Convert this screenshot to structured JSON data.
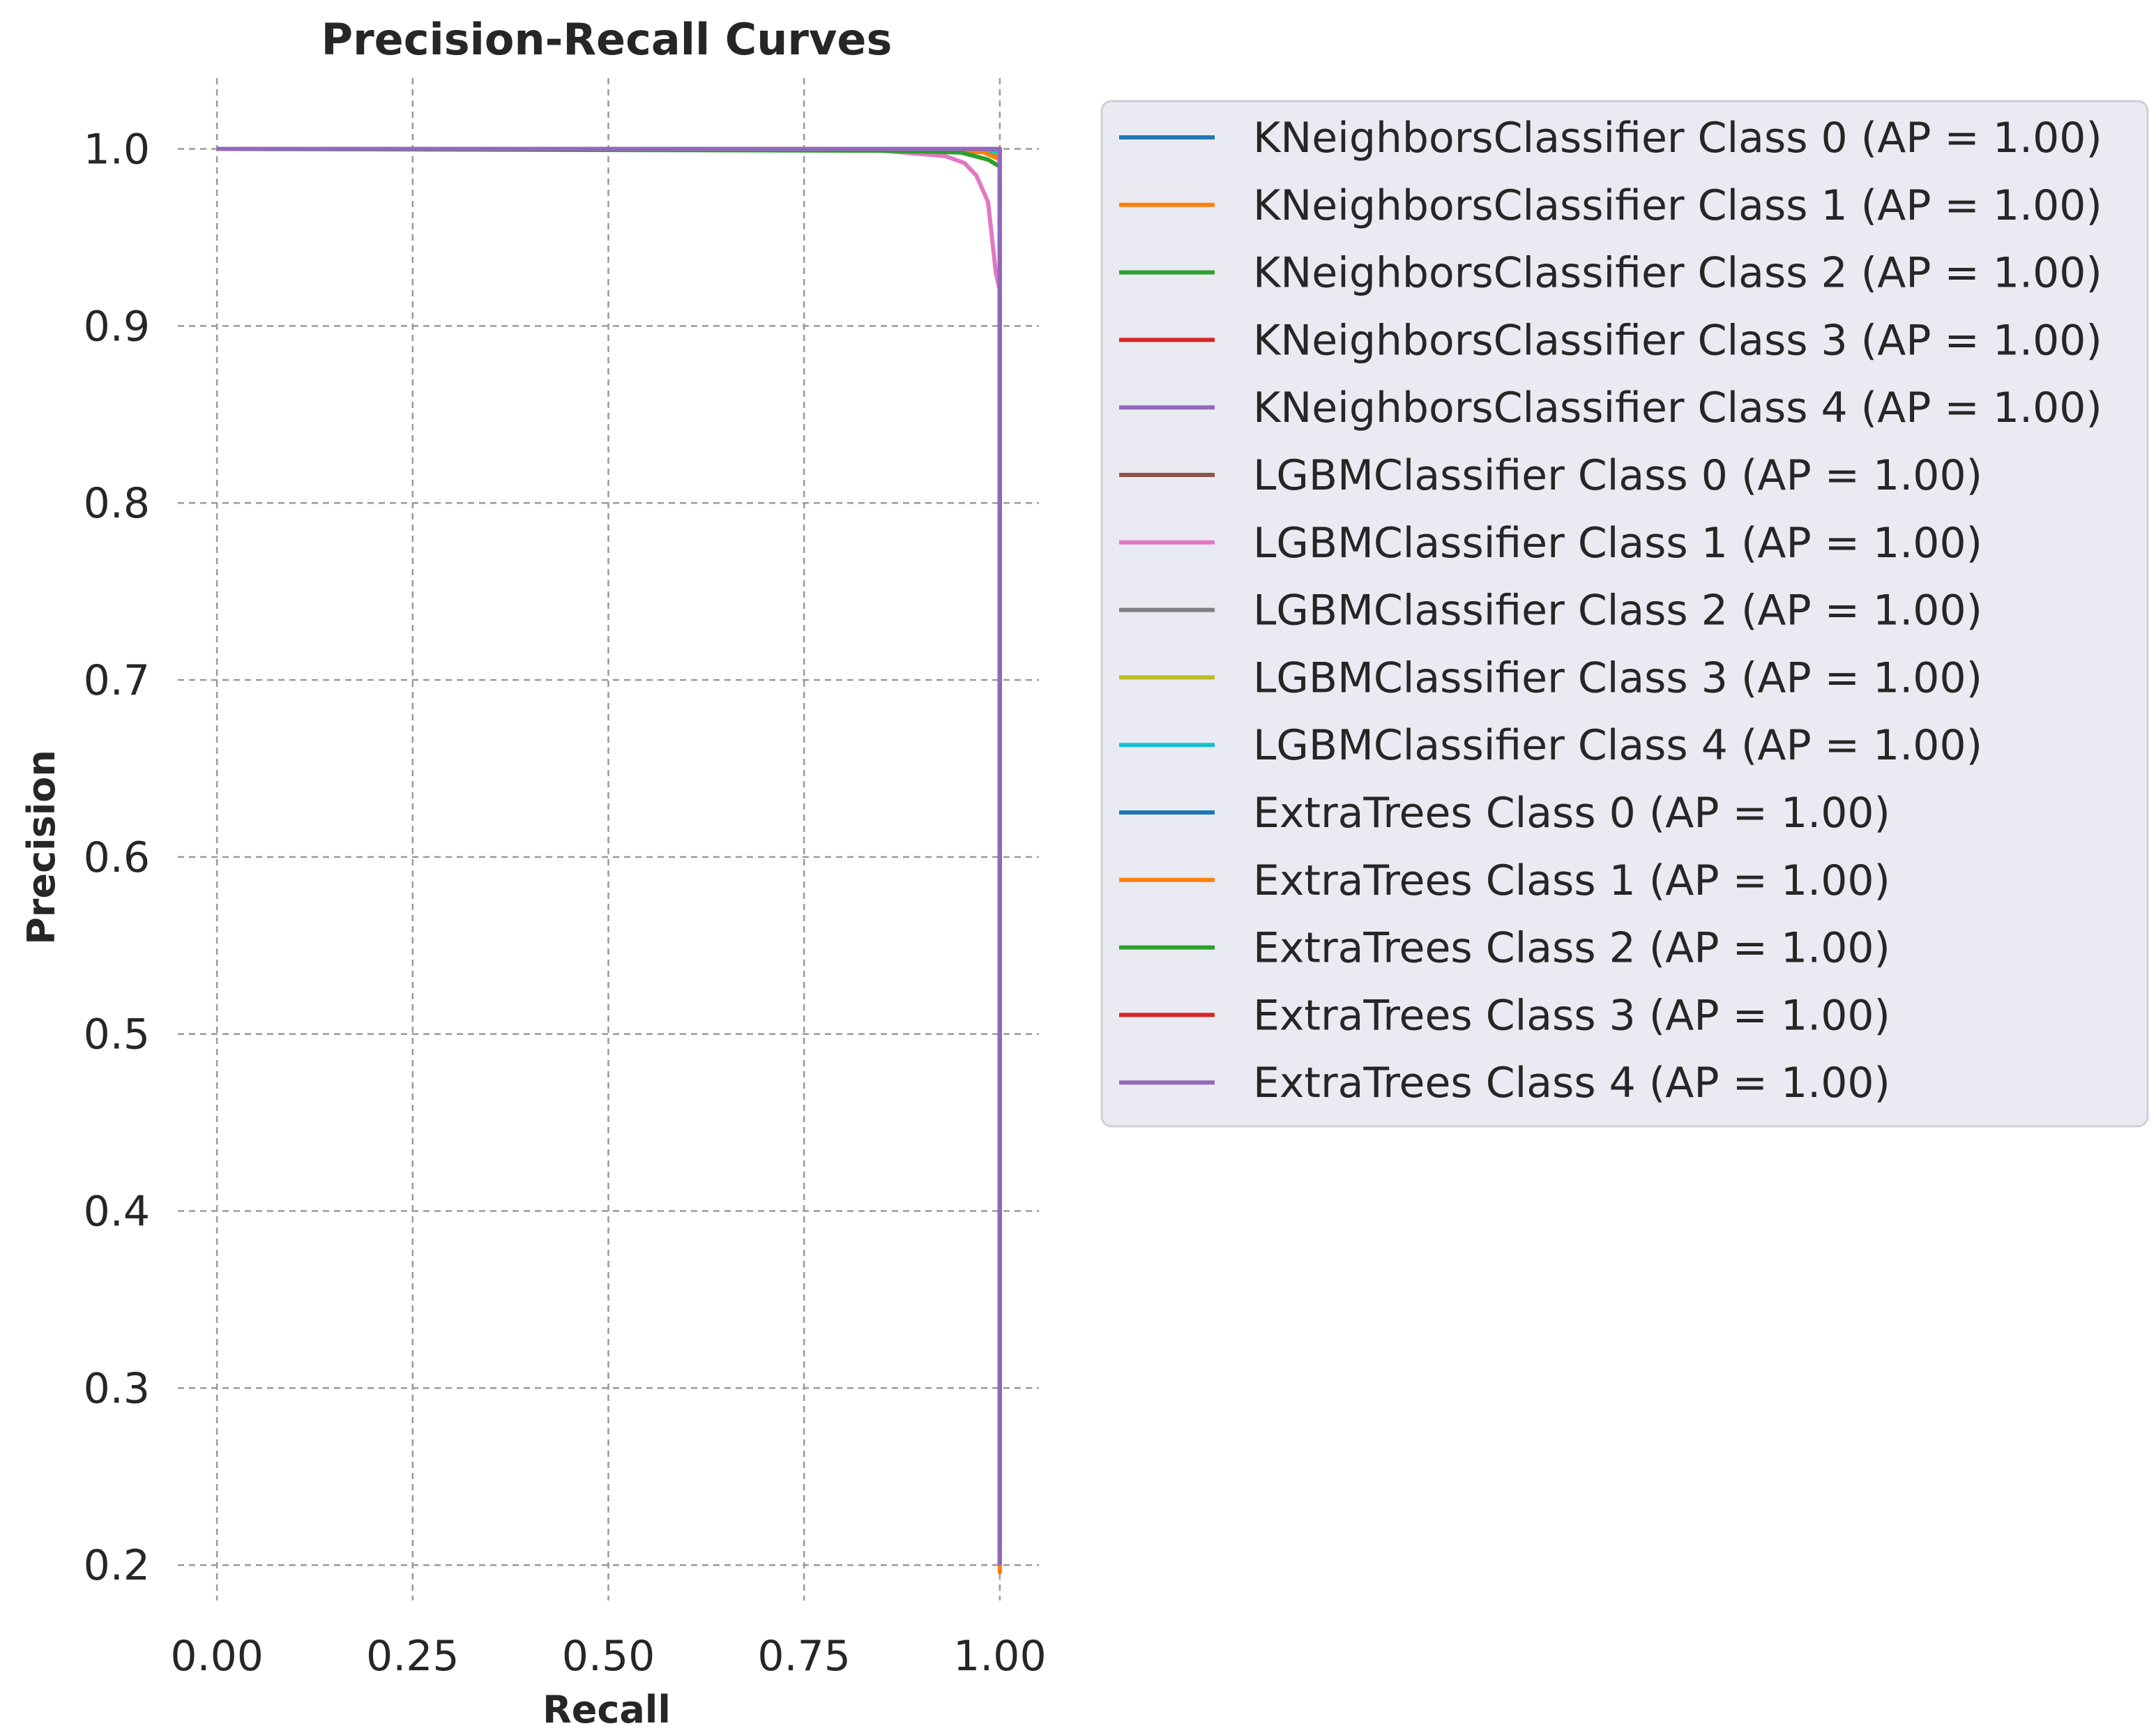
{
  "chart_data": {
    "type": "line",
    "title": "Precision-Recall Curves",
    "xlabel": "Recall",
    "ylabel": "Precision",
    "xlim": [
      -0.05,
      1.05
    ],
    "ylim": [
      0.18,
      1.04
    ],
    "xticks": [
      0.0,
      0.25,
      0.5,
      0.75,
      1.0
    ],
    "xtick_labels": [
      "0.00",
      "0.25",
      "0.50",
      "0.75",
      "1.00"
    ],
    "yticks": [
      0.2,
      0.3,
      0.4,
      0.5,
      0.6,
      0.7,
      0.8,
      0.9,
      1.0
    ],
    "ytick_labels": [
      "0.2",
      "0.3",
      "0.4",
      "0.5",
      "0.6",
      "0.7",
      "0.8",
      "0.9",
      "1.0"
    ],
    "grid": true,
    "legend_position": "outside-right",
    "series": [
      {
        "name": "KNeighborsClassifier Class 0 (AP = 1.00)",
        "color": "#1f77b4",
        "x": [
          0.0,
          0.9,
          0.995,
          1.0,
          1.0,
          1.0
        ],
        "y": [
          1.0,
          1.0,
          1.0,
          1.0,
          0.5,
          0.2
        ]
      },
      {
        "name": "KNeighborsClassifier Class 1 (AP = 1.00)",
        "color": "#ff7f0e",
        "x": [
          0.0,
          0.9,
          0.99,
          1.0,
          1.0,
          1.0
        ],
        "y": [
          1.0,
          1.0,
          0.998,
          0.995,
          0.5,
          0.195
        ]
      },
      {
        "name": "KNeighborsClassifier Class 2 (AP = 1.00)",
        "color": "#2ca02c",
        "x": [
          0.0,
          0.9,
          0.99,
          1.0,
          1.0,
          1.0
        ],
        "y": [
          1.0,
          1.0,
          0.998,
          0.996,
          0.5,
          0.2
        ]
      },
      {
        "name": "KNeighborsClassifier Class 3 (AP = 1.00)",
        "color": "#d62728",
        "x": [
          0.0,
          0.9,
          0.995,
          1.0,
          1.0,
          1.0
        ],
        "y": [
          1.0,
          1.0,
          1.0,
          1.0,
          0.5,
          0.2
        ]
      },
      {
        "name": "KNeighborsClassifier Class 4 (AP = 1.00)",
        "color": "#9467bd",
        "x": [
          0.0,
          0.9,
          0.995,
          1.0,
          1.0,
          1.0
        ],
        "y": [
          1.0,
          1.0,
          1.0,
          1.0,
          0.5,
          0.2
        ]
      },
      {
        "name": "LGBMClassifier Class 0 (AP = 1.00)",
        "color": "#8c564b",
        "x": [
          0.0,
          0.9,
          0.995,
          1.0,
          1.0,
          1.0
        ],
        "y": [
          1.0,
          1.0,
          1.0,
          1.0,
          0.5,
          0.2
        ]
      },
      {
        "name": "LGBMClassifier Class 1 (AP = 1.00)",
        "color": "#e377c2",
        "x": [
          0.0,
          0.75,
          0.85,
          0.93,
          0.955,
          0.97,
          0.985,
          0.99,
          0.995,
          1.0,
          1.0
        ],
        "y": [
          1.0,
          1.0,
          0.999,
          0.996,
          0.992,
          0.985,
          0.97,
          0.95,
          0.93,
          0.92,
          0.2
        ]
      },
      {
        "name": "LGBMClassifier Class 2 (AP = 1.00)",
        "color": "#7f7f7f",
        "x": [
          0.0,
          0.9,
          0.99,
          1.0,
          1.0,
          1.0
        ],
        "y": [
          1.0,
          1.0,
          0.999,
          0.998,
          0.5,
          0.2
        ]
      },
      {
        "name": "LGBMClassifier Class 3 (AP = 1.00)",
        "color": "#bcbd22",
        "x": [
          0.0,
          0.9,
          0.99,
          1.0,
          1.0,
          1.0
        ],
        "y": [
          1.0,
          1.0,
          0.999,
          0.997,
          0.5,
          0.2
        ]
      },
      {
        "name": "LGBMClassifier Class 4 (AP = 1.00)",
        "color": "#17becf",
        "x": [
          0.0,
          0.9,
          0.99,
          1.0,
          1.0,
          1.0
        ],
        "y": [
          1.0,
          1.0,
          0.999,
          0.998,
          0.5,
          0.2
        ]
      },
      {
        "name": "ExtraTrees Class 0 (AP = 1.00)",
        "color": "#1f77b4",
        "x": [
          0.0,
          0.9,
          0.995,
          1.0,
          1.0,
          1.0
        ],
        "y": [
          1.0,
          1.0,
          1.0,
          1.0,
          0.5,
          0.2
        ]
      },
      {
        "name": "ExtraTrees Class 1 (AP = 1.00)",
        "color": "#ff7f0e",
        "x": [
          0.0,
          0.9,
          0.98,
          1.0,
          1.0,
          1.0
        ],
        "y": [
          1.0,
          1.0,
          0.998,
          0.994,
          0.5,
          0.2
        ]
      },
      {
        "name": "ExtraTrees Class 2 (AP = 1.00)",
        "color": "#2ca02c",
        "x": [
          0.0,
          0.85,
          0.95,
          0.985,
          1.0,
          1.0,
          1.0
        ],
        "y": [
          1.0,
          0.999,
          0.998,
          0.994,
          0.99,
          0.5,
          0.2
        ]
      },
      {
        "name": "ExtraTrees Class 3 (AP = 1.00)",
        "color": "#d62728",
        "x": [
          0.0,
          0.9,
          0.995,
          1.0,
          1.0,
          1.0
        ],
        "y": [
          1.0,
          1.0,
          1.0,
          1.0,
          0.5,
          0.2
        ]
      },
      {
        "name": "ExtraTrees Class 4 (AP = 1.00)",
        "color": "#9467bd",
        "x": [
          0.0,
          0.9,
          0.995,
          1.0,
          1.0,
          1.0
        ],
        "y": [
          1.0,
          1.0,
          1.0,
          1.0,
          0.5,
          0.2
        ]
      }
    ]
  }
}
